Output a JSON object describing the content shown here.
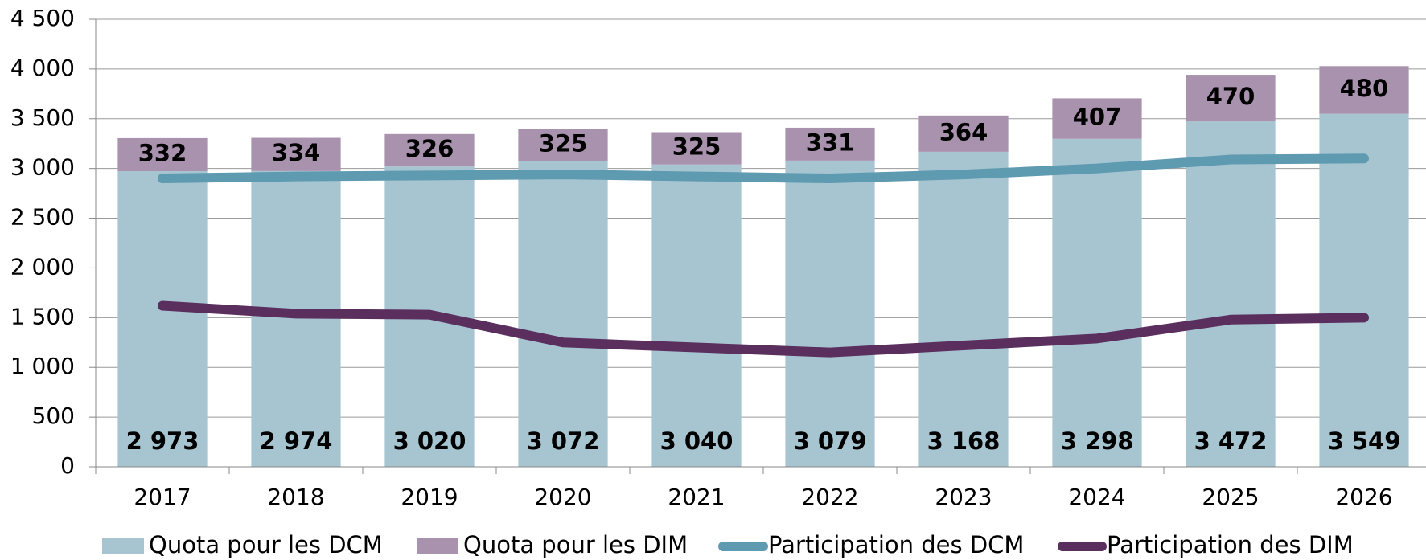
{
  "chart_data": {
    "type": "bar",
    "categories": [
      "2017",
      "2018",
      "2019",
      "2020",
      "2021",
      "2022",
      "2023",
      "2024",
      "2025",
      "2026"
    ],
    "series": [
      {
        "name": "Quota pour les DCM",
        "type": "bar",
        "color": "#a7c5d1",
        "values": [
          2973,
          2974,
          3020,
          3072,
          3040,
          3079,
          3168,
          3298,
          3472,
          3549
        ],
        "value_labels": [
          "2 973",
          "2 974",
          "3 020",
          "3 072",
          "3 040",
          "3 079",
          "3 168",
          "3 298",
          "3 472",
          "3 549"
        ]
      },
      {
        "name": "Quota pour les DIM",
        "type": "bar",
        "color": "#a992ae",
        "values": [
          332,
          334,
          326,
          325,
          325,
          331,
          364,
          407,
          470,
          480
        ]
      },
      {
        "name": "Participation des DCM",
        "type": "line",
        "color": "#5e9ab0",
        "values": [
          2900,
          2920,
          2930,
          2940,
          2920,
          2900,
          2940,
          3000,
          3090,
          3100
        ]
      },
      {
        "name": "Participation des DIM",
        "type": "line",
        "color": "#5a2f5e",
        "values": [
          1620,
          1540,
          1530,
          1250,
          1200,
          1150,
          1220,
          1290,
          1480,
          1500
        ]
      }
    ],
    "ylim": [
      0,
      4500
    ],
    "yticks": [
      0,
      500,
      {
        "value": 1000,
        "label": "1 000"
      },
      {
        "value": 1500,
        "label": "1 500"
      },
      {
        "value": 2000,
        "label": "2 000"
      },
      {
        "value": 2500,
        "label": "2 500"
      },
      {
        "value": 3000,
        "label": "3 000"
      },
      {
        "value": 3500,
        "label": "3 500"
      },
      {
        "value": 4000,
        "label": "4 000"
      },
      {
        "value": 4500,
        "label": "4 500"
      }
    ],
    "grid": true,
    "stacked": true,
    "legend": "bottom"
  }
}
